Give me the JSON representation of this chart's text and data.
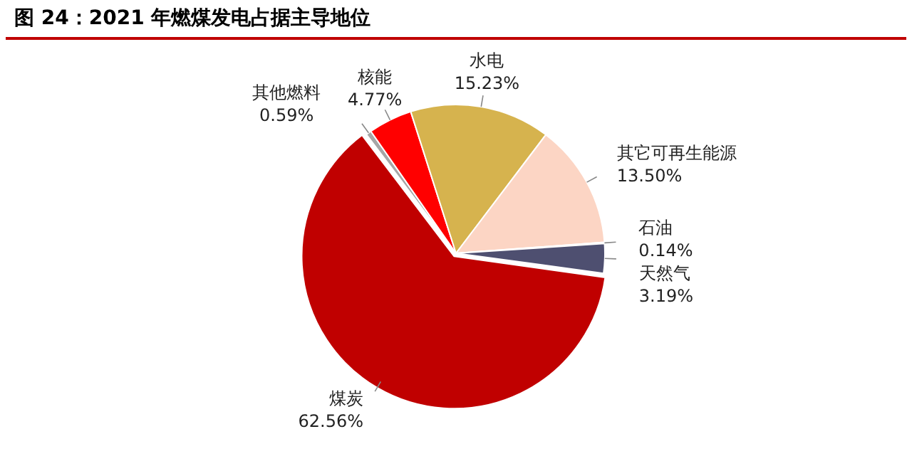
{
  "chart_data": {
    "type": "pie",
    "title": "图 24：2021 年燃煤发电占据主导地位",
    "categories": [
      "其他燃料",
      "核能",
      "水电",
      "其它可再生能源",
      "石油",
      "天然气",
      "煤炭"
    ],
    "values": [
      0.59,
      4.77,
      15.23,
      13.5,
      0.14,
      3.19,
      62.56
    ],
    "value_labels": [
      "0.59%",
      "4.77%",
      "15.23%",
      "13.50%",
      "0.14%",
      "3.19%",
      "62.56%"
    ],
    "colors": [
      "#a6a6a6",
      "#ff0000",
      "#d6b34e",
      "#fcd5c4",
      "#7f7f7f",
      "#4e4f70",
      "#c00000"
    ],
    "legend": false
  }
}
